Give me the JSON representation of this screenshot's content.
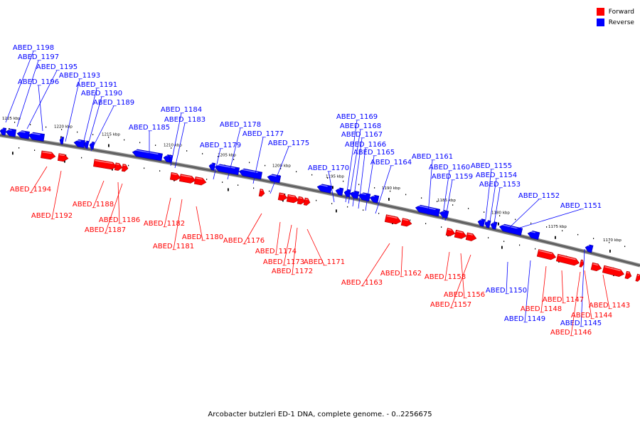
{
  "legend": {
    "forward_label": "Forward",
    "reverse_label": "Reverse",
    "forward_color": "#ff0000",
    "reverse_color": "#0000ff"
  },
  "footer": {
    "title": "Arcobacter butzleri ED-1 DNA, complete genome. - 0..2256675"
  },
  "ticks": [
    "1225 kbp",
    "1220 kbp",
    "1215 kbp",
    "1210 kbp",
    "1205 kbp",
    "1200 kbp",
    "1195 kbp",
    "1190 kbp",
    "1185 kbp",
    "1180 kbp",
    "1175 kbp",
    "1170 kbp"
  ],
  "genes": {
    "reverse": [
      "ABED_1198",
      "ABED_1197",
      "ABED_1195",
      "ABED_1196",
      "ABED_1193",
      "ABED_1191",
      "ABED_1190",
      "ABED_1189",
      "ABED_1185",
      "ABED_1184",
      "ABED_1183",
      "ABED_1178",
      "ABED_1177",
      "ABED_1179",
      "ABED_1175",
      "ABED_1169",
      "ABED_1168",
      "ABED_1167",
      "ABED_1166",
      "ABED_1165",
      "ABED_1170",
      "ABED_1164",
      "ABED_1161",
      "ABED_1160",
      "ABED_1159",
      "ABED_1155",
      "ABED_1154",
      "ABED_1153",
      "ABED_1152",
      "ABED_1151",
      "ABED_1150",
      "ABED_1149",
      "ABED_1145"
    ],
    "forward": [
      "ABED_1194",
      "ABED_1192",
      "ABED_1188",
      "ABED_1186",
      "ABED_1187",
      "ABED_1182",
      "ABED_1181",
      "ABED_1180",
      "ABED_1176",
      "ABED_1174",
      "ABED_1173",
      "ABED_1172",
      "ABED_1171",
      "ABED_1163",
      "ABED_1162",
      "ABED_1158",
      "ABED_1156",
      "ABED_1157",
      "ABED_1148",
      "ABED_1147",
      "ABED_1144",
      "ABED_1146",
      "ABED_1143"
    ]
  }
}
